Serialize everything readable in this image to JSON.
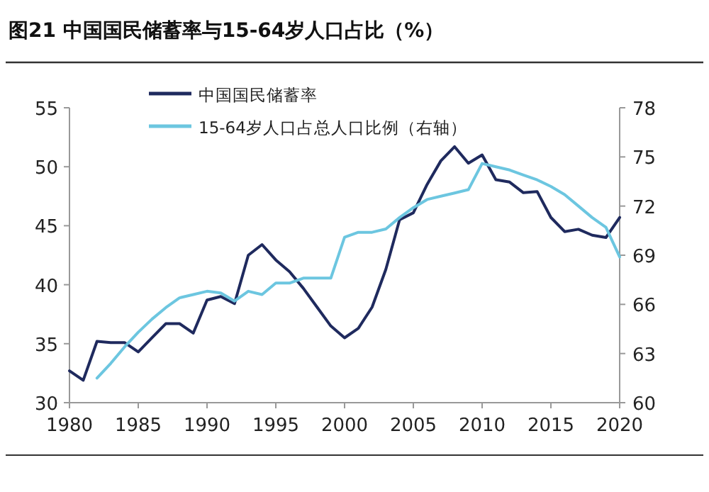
{
  "chart_data": {
    "type": "line",
    "title": "图21 中国国民储蓄率与15-64岁人口占比（%）",
    "x": [
      1980,
      1981,
      1982,
      1983,
      1984,
      1985,
      1986,
      1987,
      1988,
      1989,
      1990,
      1991,
      1992,
      1993,
      1994,
      1995,
      1996,
      1997,
      1998,
      1999,
      2000,
      2001,
      2002,
      2003,
      2004,
      2005,
      2006,
      2007,
      2008,
      2009,
      2010,
      2011,
      2012,
      2013,
      2014,
      2015,
      2016,
      2017,
      2018,
      2019,
      2020
    ],
    "series": [
      {
        "name": "中国国民储蓄率",
        "color": "#1f2a5e",
        "values": [
          32.7,
          31.9,
          35.2,
          35.1,
          35.1,
          34.3,
          35.5,
          36.7,
          36.7,
          35.9,
          38.7,
          39.0,
          38.4,
          42.5,
          43.4,
          42.1,
          41.1,
          39.7,
          38.1,
          36.5,
          35.5,
          36.3,
          38.1,
          41.3,
          45.5,
          46.1,
          48.5,
          50.5,
          51.7,
          50.3,
          51.0,
          48.9,
          48.7,
          47.8,
          47.9,
          45.7,
          44.5,
          44.7,
          44.2,
          44.0,
          45.7
        ]
      },
      {
        "name": "15-64岁人口占总人口比例（右轴）",
        "color": "#6cc6e0",
        "axis": "y2",
        "values": [
          null,
          null,
          61.5,
          62.4,
          63.4,
          64.3,
          65.1,
          65.8,
          66.4,
          66.6,
          66.8,
          66.7,
          66.2,
          66.8,
          66.6,
          67.3,
          67.3,
          67.6,
          67.6,
          67.6,
          70.1,
          70.4,
          70.4,
          70.6,
          71.3,
          71.9,
          72.4,
          72.6,
          72.8,
          73.0,
          74.6,
          74.4,
          74.2,
          73.9,
          73.6,
          73.2,
          72.7,
          72.0,
          71.3,
          70.7,
          68.9
        ]
      }
    ],
    "xlim": [
      1980,
      2020
    ],
    "xticks": [
      1980,
      1985,
      1990,
      1995,
      2000,
      2005,
      2010,
      2015,
      2020
    ],
    "ylim": [
      30,
      55
    ],
    "yticks": [
      30,
      35,
      40,
      45,
      50,
      55
    ],
    "y2lim": [
      60,
      78
    ],
    "y2ticks": [
      60,
      63,
      66,
      69,
      72,
      75,
      78
    ],
    "legend": "top left"
  }
}
